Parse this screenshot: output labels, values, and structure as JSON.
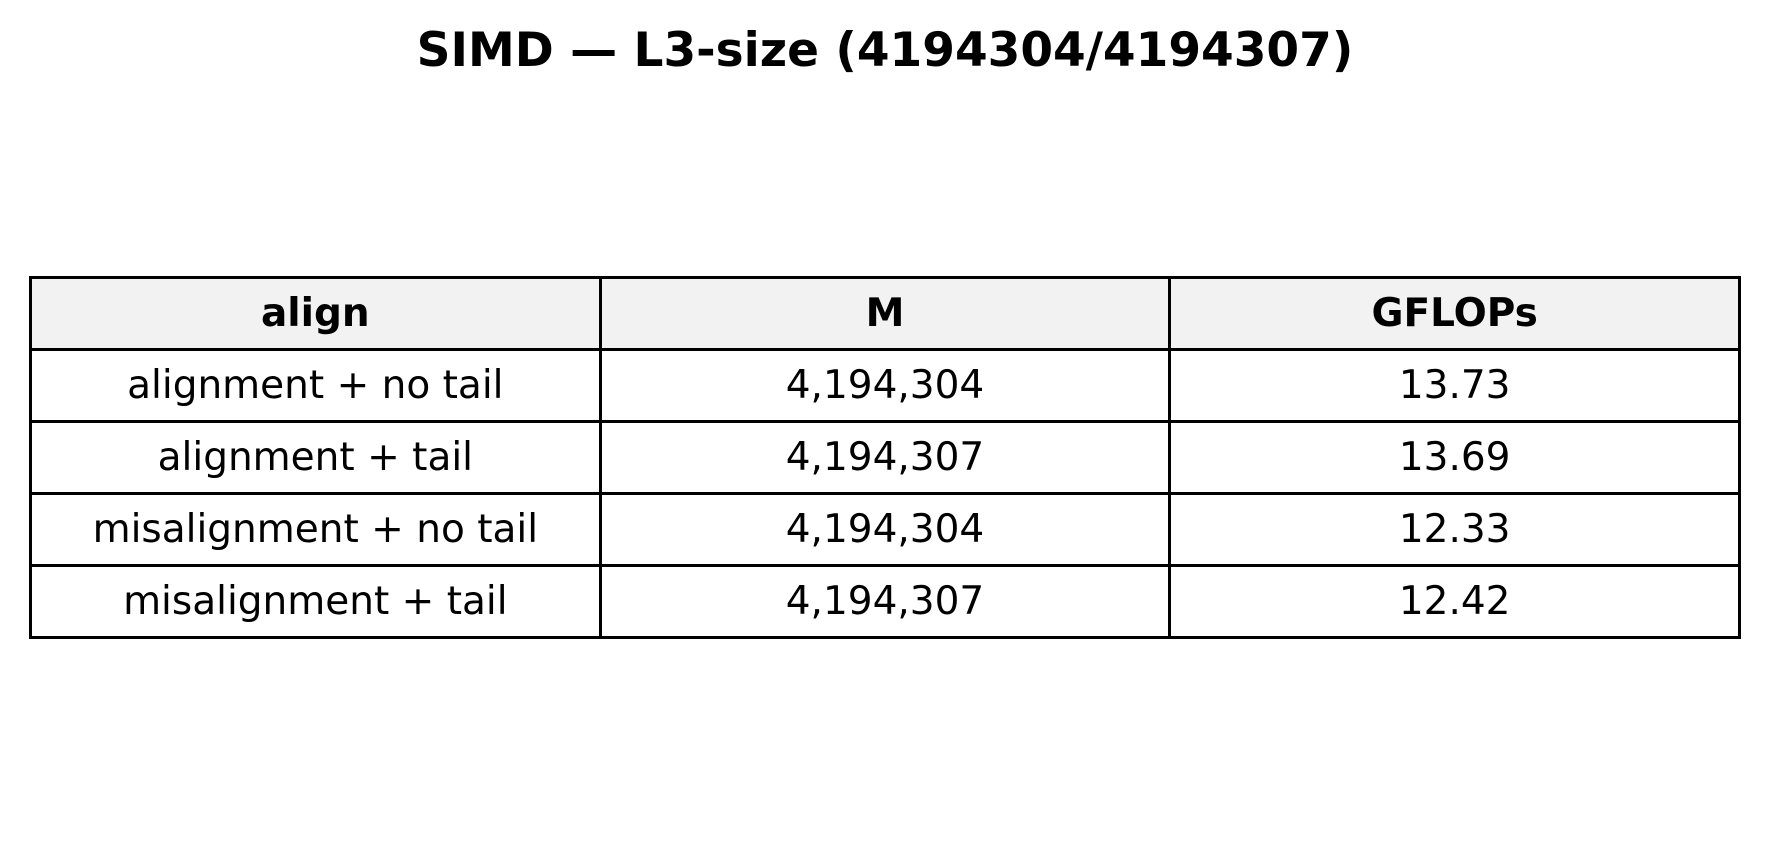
{
  "chart_data": {
    "type": "table",
    "title": "SIMD — L3-size (4194304/4194307)",
    "columns": [
      "align",
      "M",
      "GFLOPs"
    ],
    "rows": [
      [
        "alignment + no tail",
        "4,194,304",
        "13.73"
      ],
      [
        "alignment + tail",
        "4,194,307",
        "13.69"
      ],
      [
        "misalignment + no tail",
        "4,194,304",
        "12.33"
      ],
      [
        "misalignment + tail",
        "4,194,307",
        "12.42"
      ]
    ],
    "colors": {
      "header_background": "#f2f2f2",
      "cell_background": "#ffffff",
      "border": "#000000"
    }
  }
}
